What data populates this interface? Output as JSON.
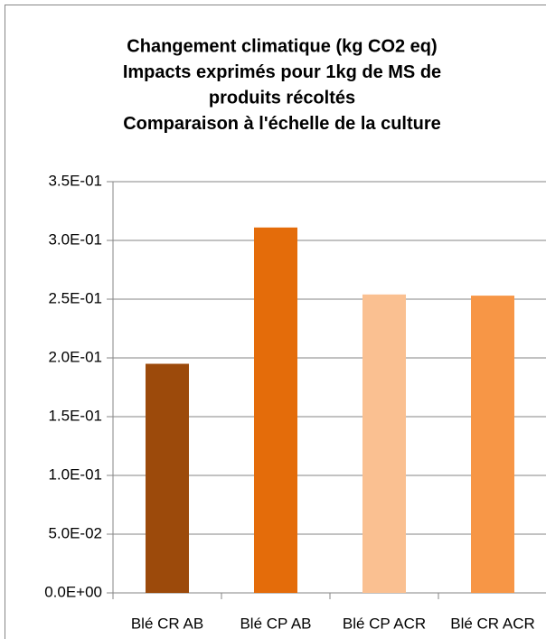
{
  "chart_data": {
    "type": "bar",
    "title": [
      "Changement climatique  (kg CO2 eq)",
      "Impacts exprimés pour 1kg de MS de",
      "produits récoltés",
      "Comparaison à l'échelle de la culture"
    ],
    "categories": [
      "Blé CR AB",
      "Blé CP AB",
      "Blé CP ACR",
      "Blé CR ACR"
    ],
    "values": [
      0.195,
      0.311,
      0.254,
      0.253
    ],
    "colors": [
      "#9c4a0b",
      "#e46c0a",
      "#fac091",
      "#f79646"
    ],
    "ylim": [
      0,
      0.35
    ],
    "yticks": [
      {
        "value": 0,
        "label": "0.0E+00"
      },
      {
        "value": 0.05,
        "label": "5.0E-02"
      },
      {
        "value": 0.1,
        "label": "1.0E-01"
      },
      {
        "value": 0.15,
        "label": "1.5E-01"
      },
      {
        "value": 0.2,
        "label": "2.0E-01"
      },
      {
        "value": 0.25,
        "label": "2.5E-01"
      },
      {
        "value": 0.3,
        "label": "3.0E-01"
      },
      {
        "value": 0.35,
        "label": "3.5E-01"
      }
    ],
    "grid": true
  }
}
